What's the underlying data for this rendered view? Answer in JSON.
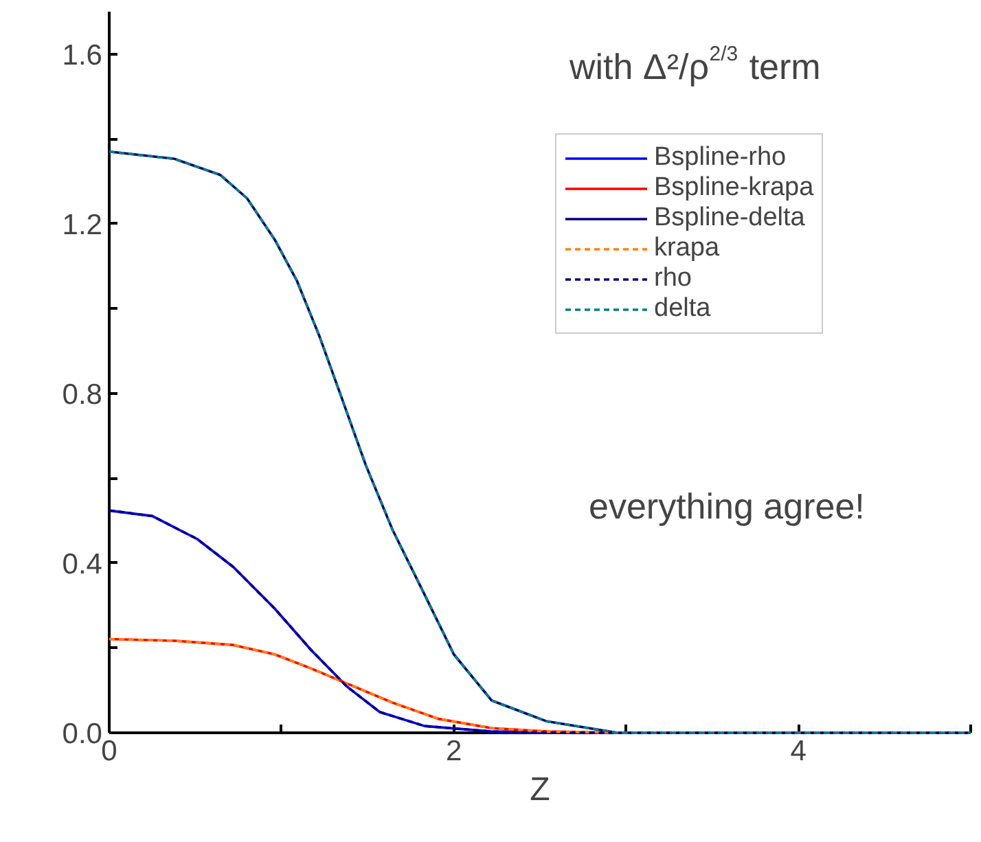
{
  "chart_data": {
    "type": "line",
    "title": "with Δ²/ρ$^{2/3}$ term",
    "xlabel": "Z",
    "annotations": [
      "everything agree!"
    ],
    "xlim": [
      0,
      5
    ],
    "ylim": [
      0,
      1.7
    ],
    "xticks": [
      0,
      {
        "value": 1,
        "label": null
      },
      2,
      {
        "value": 3,
        "label": null
      },
      4,
      {
        "value": 5,
        "label": null
      }
    ],
    "yticks": [
      {
        "value": 0,
        "label": "0.0"
      },
      {
        "value": 0.2,
        "label": null
      },
      0.4,
      {
        "value": 0.6,
        "label": null
      },
      0.8,
      {
        "value": 1.0,
        "label": null
      },
      1.2,
      {
        "value": 1.4,
        "label": null
      },
      1.6
    ],
    "grid": false,
    "legend": "top right",
    "series": [
      {
        "name": "Bspline-rho",
        "color": "#0000ff",
        "line_style": "solid",
        "x": [
          0,
          0.25,
          0.51,
          0.72,
          0.96,
          1.17,
          1.38,
          1.57,
          1.83,
          2.22,
          2.6,
          5
        ],
        "values": [
          0.524,
          0.511,
          0.457,
          0.391,
          0.293,
          0.196,
          0.109,
          0.049,
          0.016,
          0.003,
          0,
          0
        ]
      },
      {
        "name": "Bspline-krapa",
        "color": "#ff0000",
        "line_style": "solid",
        "x": [
          0,
          0.38,
          0.72,
          0.96,
          1.17,
          1.41,
          1.645,
          1.91,
          2.22,
          2.54,
          3.0,
          5
        ],
        "values": [
          0.221,
          0.217,
          0.207,
          0.185,
          0.152,
          0.111,
          0.071,
          0.033,
          0.011,
          0.003,
          0,
          0
        ]
      },
      {
        "name": "Bspline-delta",
        "color": "#000080",
        "line_style": "solid",
        "x": [
          0,
          0.38,
          0.645,
          0.8,
          0.96,
          1.09,
          1.22,
          1.355,
          1.49,
          1.645,
          1.83,
          2.0,
          2.22,
          2.54,
          2.95,
          5
        ],
        "values": [
          1.37,
          1.353,
          1.315,
          1.26,
          1.163,
          1.065,
          0.935,
          0.783,
          0.63,
          0.478,
          0.326,
          0.185,
          0.076,
          0.027,
          0,
          0
        ]
      },
      {
        "name": "krapa",
        "color": "#ff8000",
        "line_style": "dashed",
        "x": [
          0,
          0.38,
          0.72,
          0.96,
          1.17,
          1.41,
          1.645,
          1.91,
          2.22,
          2.54,
          3.0,
          5
        ],
        "values": [
          0.221,
          0.217,
          0.207,
          0.185,
          0.152,
          0.111,
          0.071,
          0.033,
          0.011,
          0.003,
          0,
          0
        ]
      },
      {
        "name": "rho",
        "color": "#000080",
        "line_style": "dashed",
        "x": [
          0,
          0.25,
          0.51,
          0.72,
          0.96,
          1.17,
          1.38,
          1.57,
          1.83,
          2.22,
          2.6,
          5
        ],
        "values": [
          0.524,
          0.511,
          0.457,
          0.391,
          0.293,
          0.196,
          0.109,
          0.049,
          0.016,
          0.003,
          0,
          0
        ]
      },
      {
        "name": "delta",
        "color": "#008080",
        "line_style": "dashed",
        "x": [
          0,
          0.38,
          0.645,
          0.8,
          0.96,
          1.09,
          1.22,
          1.355,
          1.49,
          1.645,
          1.83,
          2.0,
          2.22,
          2.54,
          2.95,
          5
        ],
        "values": [
          1.37,
          1.353,
          1.315,
          1.26,
          1.163,
          1.065,
          0.935,
          0.783,
          0.63,
          0.478,
          0.326,
          0.185,
          0.076,
          0.027,
          0,
          0
        ]
      }
    ]
  }
}
